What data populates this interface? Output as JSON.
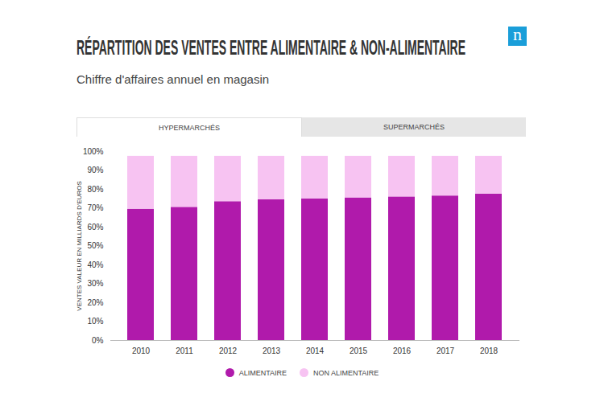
{
  "chart_data": {
    "type": "bar",
    "stacked": true,
    "title": "RÉPARTITION DES VENTES ENTRE ALIMENTAIRE & NON-ALIMENTAIRE",
    "subtitle": "Chiffre d'affaires annuel en magasin",
    "logo": "n",
    "tabs": [
      "HYPERMARCHÉS",
      "SUPERMARCHÉS"
    ],
    "y_label": "VENTES VALEUR EN MILLIARDS D'EUROS",
    "categories": [
      "2010",
      "2011",
      "2012",
      "2013",
      "2014",
      "2015",
      "2016",
      "2017",
      "2018"
    ],
    "series": [
      {
        "name": "ALIMENTAIRE",
        "color": "#b01aab",
        "values": [
          69.5,
          70.5,
          73.5,
          74.5,
          75,
          75.5,
          76,
          76.5,
          77.5
        ]
      },
      {
        "name": "NON ALIMENTAIRE",
        "color": "#f7c3f2",
        "values": [
          28,
          27,
          24,
          23,
          22.5,
          22,
          21.5,
          21,
          20
        ]
      }
    ],
    "ylim": [
      0,
      100
    ],
    "yticks": [
      {
        "value": 0,
        "label": "0%"
      },
      {
        "value": 10,
        "label": "10%"
      },
      {
        "value": 20,
        "label": "20%"
      },
      {
        "value": 30,
        "label": "30%"
      },
      {
        "value": 40,
        "label": "40%"
      },
      {
        "value": 50,
        "label": "50%"
      },
      {
        "value": 60,
        "label": "60%"
      },
      {
        "value": 70,
        "label": "70%"
      },
      {
        "value": 80,
        "label": "80%"
      },
      {
        "value": 90,
        "label": "90%"
      },
      {
        "value": 100,
        "label": "100%"
      }
    ],
    "grid": false,
    "legend": "bottom"
  }
}
